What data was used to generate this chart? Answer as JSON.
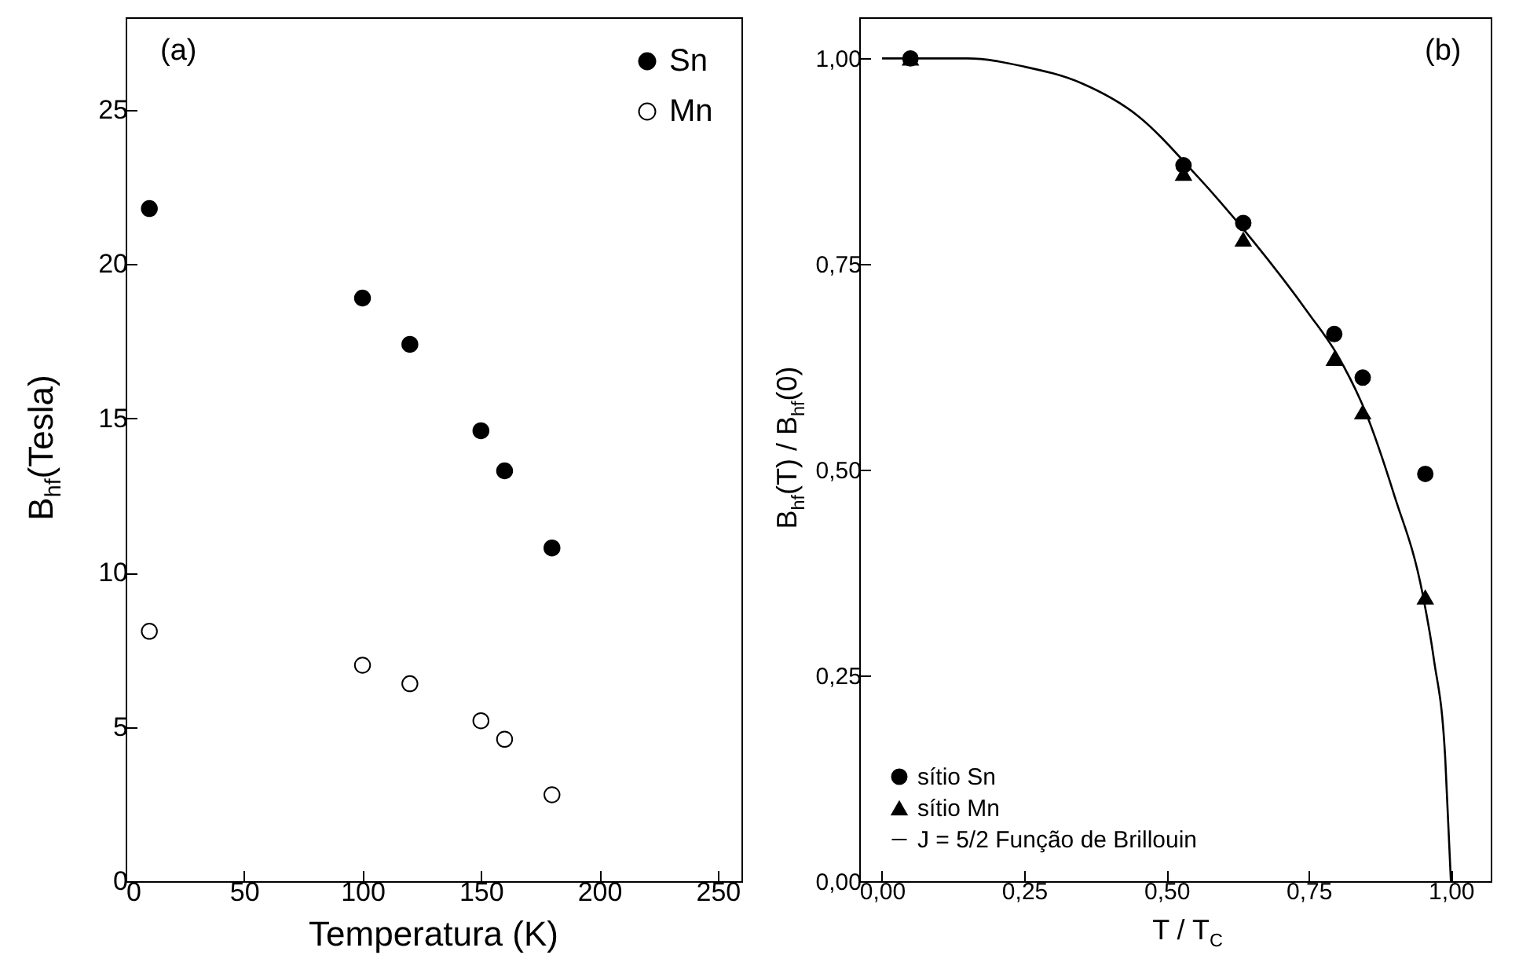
{
  "chart_data": [
    {
      "type": "scatter",
      "xlabel": "Temperatura (K)",
      "ylabel": "B$_{hf}$(Tesla)",
      "annotations": [
        "(a)"
      ],
      "xlim": [
        0,
        260
      ],
      "ylim": [
        0,
        28
      ],
      "xticks": [
        0,
        50,
        100,
        150,
        200,
        250
      ],
      "yticks": [
        0,
        5,
        10,
        15,
        20,
        25
      ],
      "grid": false,
      "legend": "top right",
      "x": [
        10,
        100,
        120,
        150,
        160,
        180
      ],
      "series": [
        {
          "name": "Sn",
          "color": "#000000",
          "marker": "circle",
          "values": [
            21.8,
            18.9,
            17.4,
            14.6,
            13.3,
            10.8
          ]
        },
        {
          "name": "Mn",
          "color": "#ffffff",
          "marker": "circle",
          "values": [
            8.1,
            7.0,
            6.4,
            5.2,
            4.6,
            2.8
          ]
        }
      ]
    },
    {
      "type": "scatter",
      "xlabel": "T / T$_{C}$",
      "ylabel": "B$_{hf}$(T) / B$_{hf}$(0)",
      "annotations": [
        "(b)"
      ],
      "xlim": [
        -0.04,
        1.07
      ],
      "ylim": [
        0,
        1.05
      ],
      "xticks": [
        {
          "value": 0,
          "label": "0,00"
        },
        {
          "value": 0.25,
          "label": "0,25"
        },
        {
          "value": 0.5,
          "label": "0,50"
        },
        {
          "value": 0.75,
          "label": "0,75"
        },
        {
          "value": 1,
          "label": "1,00"
        }
      ],
      "yticks": [
        {
          "value": 0,
          "label": "0,00"
        },
        {
          "value": 0.25,
          "label": "0,25"
        },
        {
          "value": 0.5,
          "label": "0,50"
        },
        {
          "value": 0.75,
          "label": "0,75"
        },
        {
          "value": 1,
          "label": "1,00"
        }
      ],
      "grid": false,
      "legend": "bottom left",
      "x": [
        0.05,
        0.53,
        0.635,
        0.795,
        0.845,
        0.955
      ],
      "series": [
        {
          "name": "sítio Sn",
          "color": "#000000",
          "marker": "circle",
          "values": [
            1.0,
            0.87,
            0.8,
            0.665,
            0.612,
            0.495
          ]
        },
        {
          "name": "sítio Mn",
          "color": "#000000",
          "marker": "triangle",
          "values": [
            1.0,
            0.86,
            0.78,
            0.635,
            0.57,
            0.345
          ]
        },
        {
          "name": "J = 5/2 Função de Brillouin",
          "type": "line",
          "color": "#000000",
          "marker": "none",
          "x": [
            0,
            0.15,
            0.25,
            0.35,
            0.45,
            0.55,
            0.65,
            0.75,
            0.8,
            0.85,
            0.9,
            0.95,
            0.97,
            0.99,
            1.0
          ],
          "values": [
            1,
            1,
            0.99,
            0.97,
            0.93,
            0.86,
            0.78,
            0.69,
            0.64,
            0.57,
            0.47,
            0.35,
            0.27,
            0.15,
            0
          ]
        }
      ]
    }
  ]
}
